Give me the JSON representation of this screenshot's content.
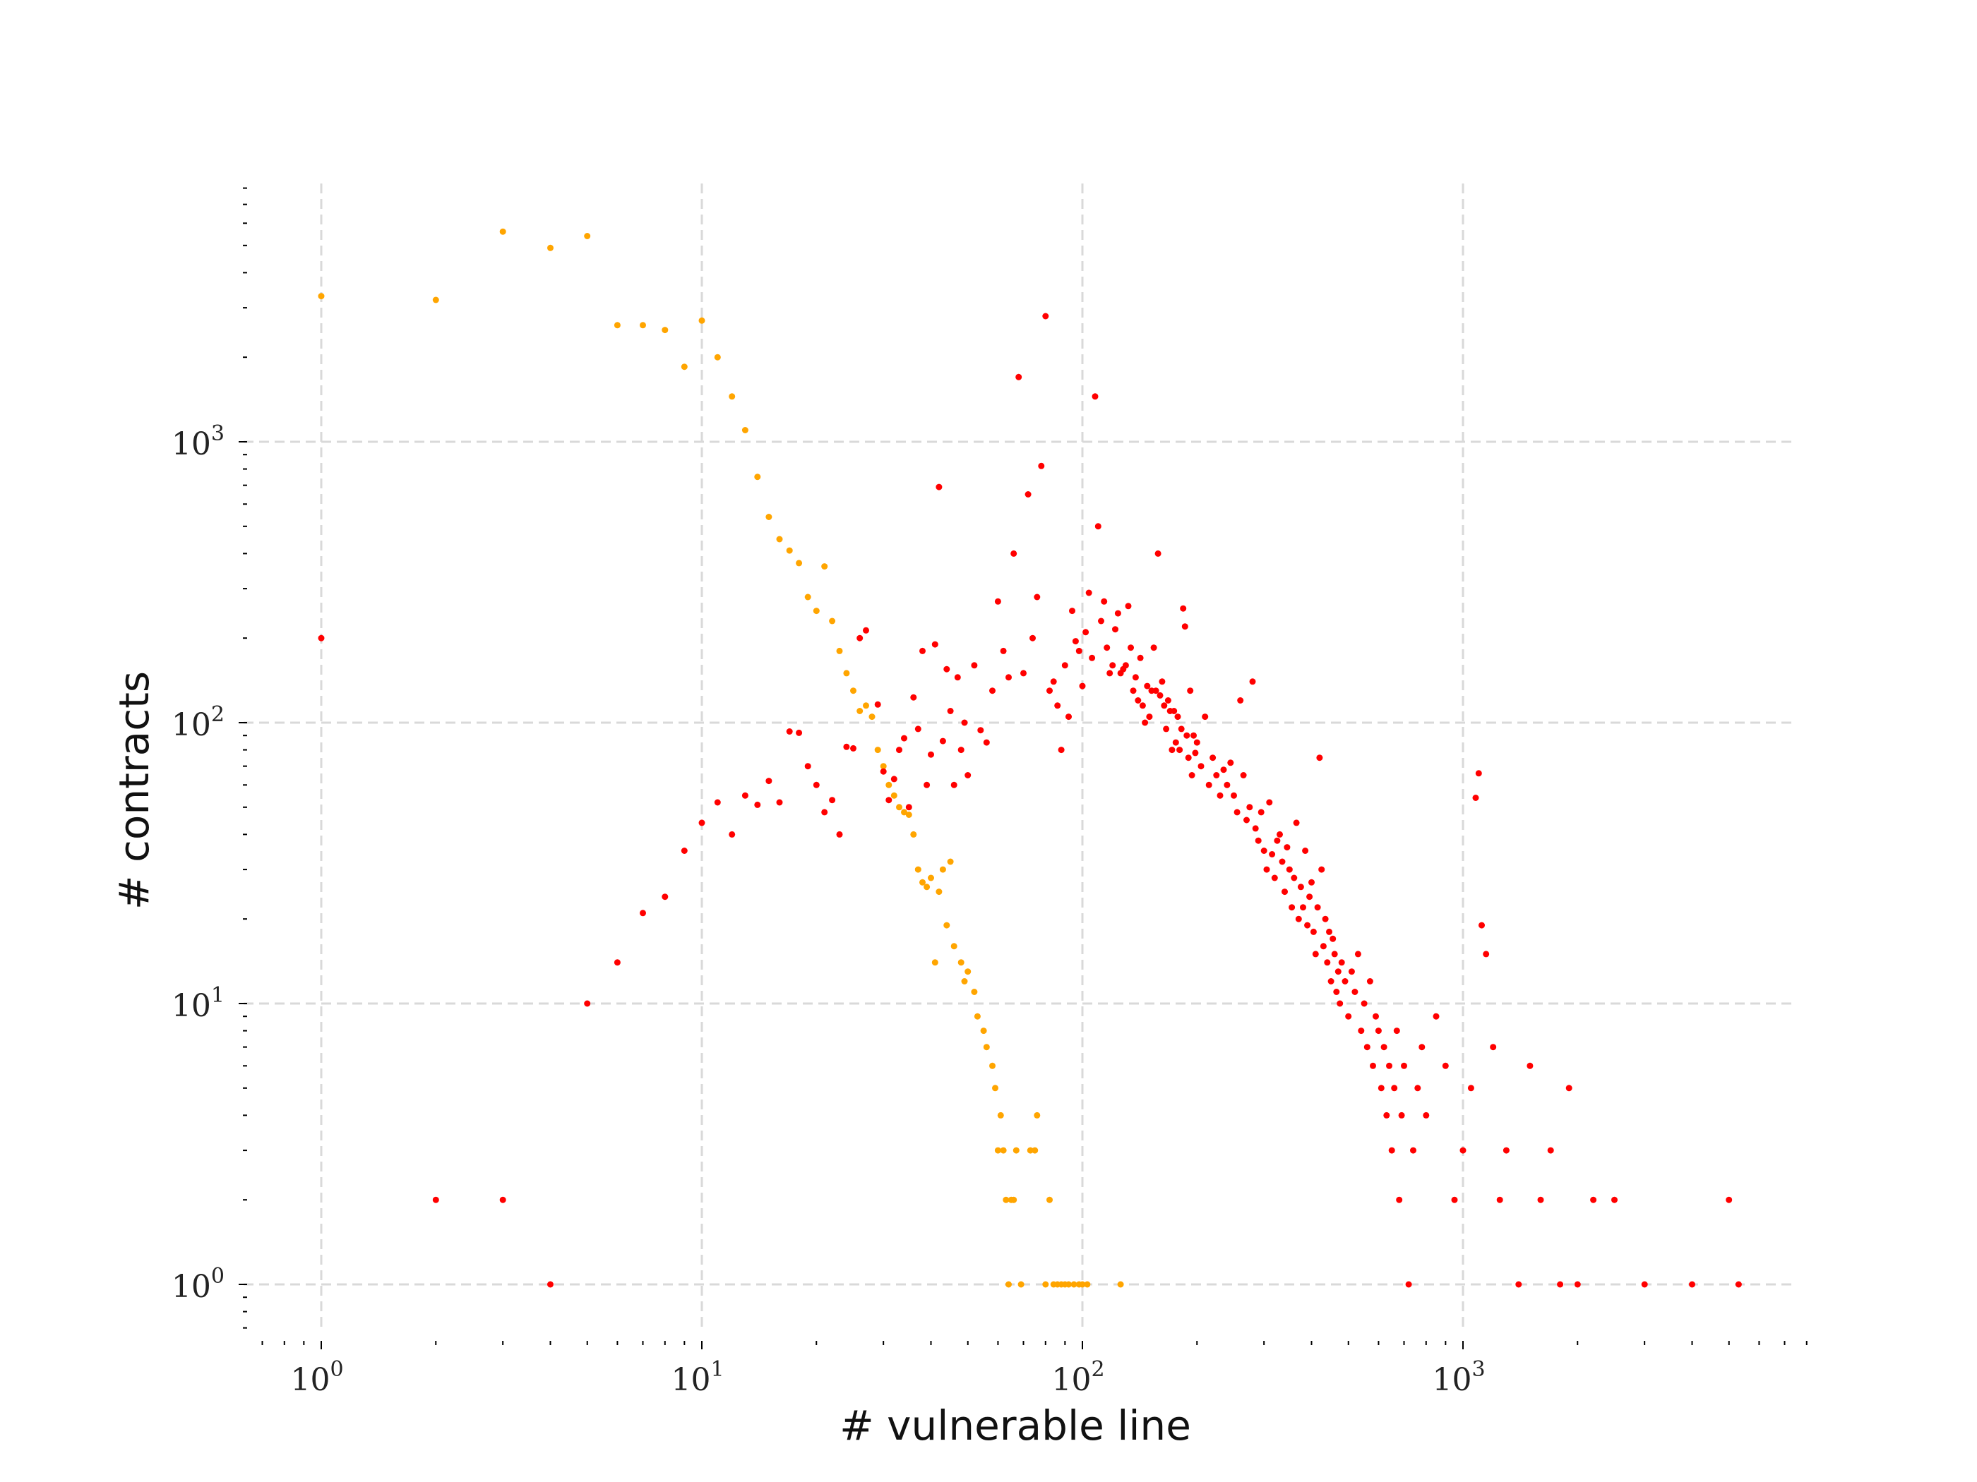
{
  "chart_data": {
    "type": "scatter",
    "title": "",
    "xlabel": "# vulnerable line",
    "ylabel": "# contracts",
    "xscale": "log",
    "yscale": "log",
    "xlim": [
      0.65,
      8000
    ],
    "ylim": [
      0.7,
      8500
    ],
    "grid": true,
    "x_ticks": [
      {
        "base": "10",
        "exp": "0"
      },
      {
        "base": "10",
        "exp": "1"
      },
      {
        "base": "10",
        "exp": "2"
      },
      {
        "base": "10",
        "exp": "3"
      }
    ],
    "y_ticks": [
      {
        "base": "10",
        "exp": "0"
      },
      {
        "base": "10",
        "exp": "1"
      },
      {
        "base": "10",
        "exp": "2"
      },
      {
        "base": "10",
        "exp": "3"
      }
    ],
    "series": [
      {
        "color": "#ffa500",
        "points": [
          [
            1,
            3300
          ],
          [
            2,
            3200
          ],
          [
            3,
            5600
          ],
          [
            4,
            4900
          ],
          [
            5,
            5400
          ],
          [
            6,
            2600
          ],
          [
            7,
            2600
          ],
          [
            8,
            2500
          ],
          [
            9,
            1850
          ],
          [
            10,
            2700
          ],
          [
            11,
            2000
          ],
          [
            12,
            1450
          ],
          [
            13,
            1100
          ],
          [
            14,
            750
          ],
          [
            15,
            540
          ],
          [
            16,
            450
          ],
          [
            17,
            410
          ],
          [
            18,
            370
          ],
          [
            19,
            280
          ],
          [
            20,
            250
          ],
          [
            21,
            360
          ],
          [
            22,
            230
          ],
          [
            23,
            180
          ],
          [
            24,
            150
          ],
          [
            25,
            130
          ],
          [
            26,
            110
          ],
          [
            27,
            115
          ],
          [
            28,
            105
          ],
          [
            29,
            80
          ],
          [
            30,
            70
          ],
          [
            31,
            60
          ],
          [
            32,
            55
          ],
          [
            33,
            50
          ],
          [
            34,
            48
          ],
          [
            35,
            47
          ],
          [
            36,
            40
          ],
          [
            37,
            30
          ],
          [
            38,
            27
          ],
          [
            39,
            26
          ],
          [
            40,
            28
          ],
          [
            41,
            14
          ],
          [
            42,
            25
          ],
          [
            43,
            30
          ],
          [
            44,
            19
          ],
          [
            45,
            32
          ],
          [
            46,
            16
          ],
          [
            48,
            14
          ],
          [
            49,
            12
          ],
          [
            50,
            13
          ],
          [
            52,
            11
          ],
          [
            53,
            9
          ],
          [
            55,
            8
          ],
          [
            56,
            7
          ],
          [
            58,
            6
          ],
          [
            59,
            5
          ],
          [
            60,
            3
          ],
          [
            61,
            4
          ],
          [
            62,
            3
          ],
          [
            63,
            2
          ],
          [
            64,
            1
          ],
          [
            65,
            2
          ],
          [
            66,
            2
          ],
          [
            67,
            3
          ],
          [
            69,
            1
          ],
          [
            73,
            3
          ],
          [
            75,
            3
          ],
          [
            76,
            4
          ],
          [
            80,
            1
          ],
          [
            82,
            2
          ],
          [
            84,
            1
          ],
          [
            86,
            1
          ],
          [
            88,
            1
          ],
          [
            90,
            1
          ],
          [
            92,
            1
          ],
          [
            95,
            1
          ],
          [
            98,
            1
          ],
          [
            100,
            1
          ],
          [
            103,
            1
          ],
          [
            126,
            1
          ]
        ]
      },
      {
        "color": "#ff0000",
        "points": [
          [
            1,
            200
          ],
          [
            2,
            2
          ],
          [
            3,
            2
          ],
          [
            4,
            1
          ],
          [
            5,
            10
          ],
          [
            6,
            14
          ],
          [
            7,
            21
          ],
          [
            8,
            24
          ],
          [
            9,
            35
          ],
          [
            10,
            44
          ],
          [
            11,
            52
          ],
          [
            12,
            40
          ],
          [
            13,
            55
          ],
          [
            14,
            51
          ],
          [
            15,
            62
          ],
          [
            16,
            52
          ],
          [
            17,
            93
          ],
          [
            18,
            92
          ],
          [
            19,
            70
          ],
          [
            20,
            60
          ],
          [
            21,
            48
          ],
          [
            22,
            53
          ],
          [
            23,
            40
          ],
          [
            24,
            82
          ],
          [
            25,
            81
          ],
          [
            26,
            200
          ],
          [
            27,
            213
          ],
          [
            29,
            116
          ],
          [
            30,
            67
          ],
          [
            31,
            53
          ],
          [
            32,
            63
          ],
          [
            33,
            80
          ],
          [
            34,
            88
          ],
          [
            35,
            50
          ],
          [
            36,
            123
          ],
          [
            37,
            95
          ],
          [
            38,
            180
          ],
          [
            39,
            60
          ],
          [
            40,
            77
          ],
          [
            41,
            190
          ],
          [
            42,
            690
          ],
          [
            43,
            86
          ],
          [
            44,
            155
          ],
          [
            45,
            110
          ],
          [
            46,
            60
          ],
          [
            47,
            145
          ],
          [
            48,
            80
          ],
          [
            49,
            100
          ],
          [
            50,
            65
          ],
          [
            52,
            160
          ],
          [
            54,
            94
          ],
          [
            56,
            85
          ],
          [
            58,
            130
          ],
          [
            60,
            270
          ],
          [
            62,
            180
          ],
          [
            64,
            145
          ],
          [
            66,
            400
          ],
          [
            68,
            1700
          ],
          [
            70,
            150
          ],
          [
            72,
            650
          ],
          [
            74,
            200
          ],
          [
            76,
            280
          ],
          [
            78,
            820
          ],
          [
            80,
            2800
          ],
          [
            82,
            130
          ],
          [
            84,
            140
          ],
          [
            86,
            115
          ],
          [
            88,
            80
          ],
          [
            90,
            160
          ],
          [
            92,
            105
          ],
          [
            94,
            250
          ],
          [
            96,
            195
          ],
          [
            98,
            180
          ],
          [
            100,
            135
          ],
          [
            102,
            210
          ],
          [
            104,
            290
          ],
          [
            106,
            170
          ],
          [
            108,
            1450
          ],
          [
            110,
            500
          ],
          [
            112,
            230
          ],
          [
            114,
            270
          ],
          [
            116,
            185
          ],
          [
            118,
            150
          ],
          [
            120,
            160
          ],
          [
            122,
            215
          ],
          [
            124,
            245
          ],
          [
            126,
            150
          ],
          [
            128,
            155
          ],
          [
            130,
            160
          ],
          [
            132,
            260
          ],
          [
            134,
            185
          ],
          [
            136,
            130
          ],
          [
            138,
            145
          ],
          [
            140,
            120
          ],
          [
            142,
            170
          ],
          [
            144,
            115
          ],
          [
            146,
            100
          ],
          [
            148,
            135
          ],
          [
            150,
            105
          ],
          [
            152,
            130
          ],
          [
            154,
            185
          ],
          [
            156,
            130
          ],
          [
            158,
            400
          ],
          [
            160,
            125
          ],
          [
            162,
            140
          ],
          [
            164,
            115
          ],
          [
            166,
            95
          ],
          [
            168,
            120
          ],
          [
            170,
            110
          ],
          [
            172,
            80
          ],
          [
            174,
            110
          ],
          [
            176,
            85
          ],
          [
            178,
            105
          ],
          [
            180,
            80
          ],
          [
            182,
            95
          ],
          [
            184,
            255
          ],
          [
            186,
            220
          ],
          [
            188,
            90
          ],
          [
            190,
            75
          ],
          [
            192,
            130
          ],
          [
            194,
            65
          ],
          [
            196,
            90
          ],
          [
            198,
            78
          ],
          [
            200,
            85
          ],
          [
            205,
            70
          ],
          [
            210,
            105
          ],
          [
            215,
            60
          ],
          [
            220,
            75
          ],
          [
            225,
            65
          ],
          [
            230,
            55
          ],
          [
            235,
            68
          ],
          [
            240,
            60
          ],
          [
            245,
            72
          ],
          [
            250,
            55
          ],
          [
            255,
            48
          ],
          [
            260,
            120
          ],
          [
            265,
            65
          ],
          [
            270,
            45
          ],
          [
            275,
            50
          ],
          [
            280,
            140
          ],
          [
            285,
            42
          ],
          [
            290,
            38
          ],
          [
            295,
            48
          ],
          [
            300,
            35
          ],
          [
            305,
            30
          ],
          [
            310,
            52
          ],
          [
            315,
            34
          ],
          [
            320,
            28
          ],
          [
            325,
            38
          ],
          [
            330,
            40
          ],
          [
            335,
            32
          ],
          [
            340,
            25
          ],
          [
            345,
            36
          ],
          [
            350,
            30
          ],
          [
            355,
            22
          ],
          [
            360,
            28
          ],
          [
            365,
            44
          ],
          [
            370,
            20
          ],
          [
            375,
            26
          ],
          [
            380,
            22
          ],
          [
            385,
            35
          ],
          [
            390,
            19
          ],
          [
            395,
            24
          ],
          [
            400,
            27
          ],
          [
            405,
            18
          ],
          [
            410,
            15
          ],
          [
            415,
            22
          ],
          [
            420,
            75
          ],
          [
            425,
            30
          ],
          [
            430,
            16
          ],
          [
            435,
            20
          ],
          [
            440,
            14
          ],
          [
            445,
            18
          ],
          [
            450,
            12
          ],
          [
            455,
            17
          ],
          [
            460,
            15
          ],
          [
            465,
            11
          ],
          [
            470,
            13
          ],
          [
            475,
            10
          ],
          [
            480,
            14
          ],
          [
            490,
            12
          ],
          [
            500,
            9
          ],
          [
            510,
            13
          ],
          [
            520,
            11
          ],
          [
            530,
            15
          ],
          [
            540,
            8
          ],
          [
            550,
            10
          ],
          [
            560,
            7
          ],
          [
            570,
            12
          ],
          [
            580,
            6
          ],
          [
            590,
            9
          ],
          [
            600,
            8
          ],
          [
            610,
            5
          ],
          [
            620,
            7
          ],
          [
            630,
            4
          ],
          [
            640,
            6
          ],
          [
            650,
            3
          ],
          [
            660,
            5
          ],
          [
            670,
            8
          ],
          [
            680,
            2
          ],
          [
            690,
            4
          ],
          [
            700,
            6
          ],
          [
            720,
            1
          ],
          [
            740,
            3
          ],
          [
            760,
            5
          ],
          [
            780,
            7
          ],
          [
            800,
            4
          ],
          [
            850,
            9
          ],
          [
            900,
            6
          ],
          [
            950,
            2
          ],
          [
            1000,
            3
          ],
          [
            1050,
            5
          ],
          [
            1080,
            54
          ],
          [
            1100,
            66
          ],
          [
            1120,
            19
          ],
          [
            1150,
            15
          ],
          [
            1200,
            7
          ],
          [
            1250,
            2
          ],
          [
            1300,
            3
          ],
          [
            1400,
            1
          ],
          [
            1500,
            6
          ],
          [
            1600,
            2
          ],
          [
            1700,
            3
          ],
          [
            1800,
            1
          ],
          [
            1900,
            5
          ],
          [
            2000,
            1
          ],
          [
            2200,
            2
          ],
          [
            2500,
            2
          ],
          [
            3000,
            1
          ],
          [
            4000,
            1
          ],
          [
            5000,
            2
          ],
          [
            5300,
            1
          ]
        ]
      }
    ]
  }
}
